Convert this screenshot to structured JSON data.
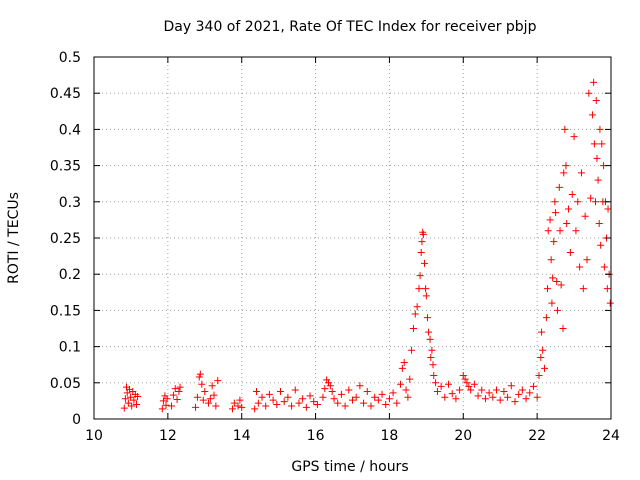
{
  "chart_data": {
    "type": "scatter",
    "title": "Day 340 of 2021, Rate Of TEC Index for receiver pbjp",
    "xlabel": "GPS time / hours",
    "ylabel": "ROTI / TECUs",
    "xlim": [
      10,
      24
    ],
    "ylim": [
      0,
      0.5
    ],
    "x_ticks": [
      "10",
      "12",
      "14",
      "16",
      "18",
      "20",
      "22",
      "24"
    ],
    "y_ticks": [
      "0",
      "0.05",
      "0.1",
      "0.15",
      "0.2",
      "0.25",
      "0.3",
      "0.35",
      "0.4",
      "0.45",
      "0.5"
    ],
    "grid": true,
    "marker": "+",
    "color": "#ff0000",
    "series": [
      {
        "points": [
          [
            10.82,
            0.015
          ],
          [
            10.85,
            0.028
          ],
          [
            10.88,
            0.044
          ],
          [
            10.9,
            0.036
          ],
          [
            10.93,
            0.022
          ],
          [
            10.96,
            0.041
          ],
          [
            10.99,
            0.03
          ],
          [
            11.02,
            0.018
          ],
          [
            11.05,
            0.038
          ],
          [
            11.08,
            0.026
          ],
          [
            11.12,
            0.034
          ],
          [
            11.15,
            0.02
          ],
          [
            11.18,
            0.031
          ],
          [
            11.85,
            0.014
          ],
          [
            11.88,
            0.025
          ],
          [
            11.92,
            0.032
          ],
          [
            11.95,
            0.019
          ],
          [
            11.98,
            0.028
          ],
          [
            12.1,
            0.018
          ],
          [
            12.15,
            0.033
          ],
          [
            12.2,
            0.042
          ],
          [
            12.25,
            0.027
          ],
          [
            12.3,
            0.038
          ],
          [
            12.33,
            0.044
          ],
          [
            12.75,
            0.016
          ],
          [
            12.8,
            0.03
          ],
          [
            12.85,
            0.058
          ],
          [
            12.88,
            0.062
          ],
          [
            12.92,
            0.048
          ],
          [
            12.96,
            0.026
          ],
          [
            13.0,
            0.038
          ],
          [
            13.1,
            0.022
          ],
          [
            13.15,
            0.028
          ],
          [
            13.2,
            0.046
          ],
          [
            13.25,
            0.033
          ],
          [
            13.3,
            0.018
          ],
          [
            13.35,
            0.053
          ],
          [
            13.75,
            0.014
          ],
          [
            13.8,
            0.022
          ],
          [
            13.9,
            0.018
          ],
          [
            13.95,
            0.026
          ],
          [
            14.0,
            0.016
          ],
          [
            14.35,
            0.014
          ],
          [
            14.4,
            0.038
          ],
          [
            14.45,
            0.022
          ],
          [
            14.55,
            0.03
          ],
          [
            14.65,
            0.018
          ],
          [
            14.75,
            0.034
          ],
          [
            14.85,
            0.026
          ],
          [
            14.95,
            0.02
          ],
          [
            15.05,
            0.038
          ],
          [
            15.15,
            0.024
          ],
          [
            15.25,
            0.03
          ],
          [
            15.35,
            0.018
          ],
          [
            15.45,
            0.04
          ],
          [
            15.55,
            0.022
          ],
          [
            15.65,
            0.028
          ],
          [
            15.75,
            0.016
          ],
          [
            15.85,
            0.032
          ],
          [
            15.95,
            0.024
          ],
          [
            16.05,
            0.02
          ],
          [
            16.2,
            0.03
          ],
          [
            16.25,
            0.042
          ],
          [
            16.3,
            0.054
          ],
          [
            16.35,
            0.05
          ],
          [
            16.4,
            0.046
          ],
          [
            16.45,
            0.038
          ],
          [
            16.5,
            0.028
          ],
          [
            16.6,
            0.022
          ],
          [
            16.7,
            0.034
          ],
          [
            16.8,
            0.018
          ],
          [
            16.9,
            0.04
          ],
          [
            17.0,
            0.026
          ],
          [
            17.1,
            0.03
          ],
          [
            17.2,
            0.046
          ],
          [
            17.3,
            0.022
          ],
          [
            17.4,
            0.038
          ],
          [
            17.5,
            0.018
          ],
          [
            17.6,
            0.03
          ],
          [
            17.7,
            0.026
          ],
          [
            17.8,
            0.034
          ],
          [
            17.9,
            0.02
          ],
          [
            18.0,
            0.028
          ],
          [
            18.1,
            0.036
          ],
          [
            18.2,
            0.022
          ],
          [
            18.3,
            0.048
          ],
          [
            18.35,
            0.07
          ],
          [
            18.4,
            0.078
          ],
          [
            18.45,
            0.04
          ],
          [
            18.5,
            0.03
          ],
          [
            18.55,
            0.055
          ],
          [
            18.6,
            0.095
          ],
          [
            18.65,
            0.125
          ],
          [
            18.7,
            0.145
          ],
          [
            18.75,
            0.155
          ],
          [
            18.8,
            0.18
          ],
          [
            18.83,
            0.198
          ],
          [
            18.86,
            0.23
          ],
          [
            18.88,
            0.245
          ],
          [
            18.9,
            0.258
          ],
          [
            18.92,
            0.255
          ],
          [
            18.95,
            0.215
          ],
          [
            18.98,
            0.18
          ],
          [
            19.0,
            0.17
          ],
          [
            19.03,
            0.14
          ],
          [
            19.06,
            0.12
          ],
          [
            19.1,
            0.11
          ],
          [
            19.12,
            0.085
          ],
          [
            19.15,
            0.095
          ],
          [
            19.18,
            0.075
          ],
          [
            19.2,
            0.06
          ],
          [
            19.25,
            0.05
          ],
          [
            19.3,
            0.038
          ],
          [
            19.4,
            0.045
          ],
          [
            19.5,
            0.03
          ],
          [
            19.6,
            0.048
          ],
          [
            19.7,
            0.035
          ],
          [
            19.8,
            0.028
          ],
          [
            19.9,
            0.04
          ],
          [
            20.0,
            0.06
          ],
          [
            20.05,
            0.055
          ],
          [
            20.1,
            0.05
          ],
          [
            20.15,
            0.045
          ],
          [
            20.2,
            0.04
          ],
          [
            20.3,
            0.048
          ],
          [
            20.4,
            0.032
          ],
          [
            20.5,
            0.04
          ],
          [
            20.6,
            0.028
          ],
          [
            20.7,
            0.036
          ],
          [
            20.8,
            0.03
          ],
          [
            20.9,
            0.04
          ],
          [
            21.0,
            0.026
          ],
          [
            21.1,
            0.038
          ],
          [
            21.2,
            0.03
          ],
          [
            21.3,
            0.046
          ],
          [
            21.4,
            0.024
          ],
          [
            21.5,
            0.034
          ],
          [
            21.6,
            0.04
          ],
          [
            21.7,
            0.028
          ],
          [
            21.8,
            0.036
          ],
          [
            21.9,
            0.045
          ],
          [
            22.0,
            0.03
          ],
          [
            22.05,
            0.06
          ],
          [
            22.1,
            0.085
          ],
          [
            22.12,
            0.12
          ],
          [
            22.15,
            0.095
          ],
          [
            22.2,
            0.07
          ],
          [
            22.25,
            0.14
          ],
          [
            22.28,
            0.18
          ],
          [
            22.3,
            0.26
          ],
          [
            22.35,
            0.275
          ],
          [
            22.38,
            0.22
          ],
          [
            22.4,
            0.16
          ],
          [
            22.42,
            0.195
          ],
          [
            22.45,
            0.245
          ],
          [
            22.48,
            0.3
          ],
          [
            22.5,
            0.285
          ],
          [
            22.53,
            0.19
          ],
          [
            22.55,
            0.15
          ],
          [
            22.6,
            0.32
          ],
          [
            22.62,
            0.26
          ],
          [
            22.65,
            0.185
          ],
          [
            22.7,
            0.125
          ],
          [
            22.72,
            0.34
          ],
          [
            22.75,
            0.4
          ],
          [
            22.78,
            0.35
          ],
          [
            22.8,
            0.27
          ],
          [
            22.85,
            0.29
          ],
          [
            22.9,
            0.23
          ],
          [
            22.95,
            0.31
          ],
          [
            23.0,
            0.39
          ],
          [
            23.05,
            0.26
          ],
          [
            23.1,
            0.3
          ],
          [
            23.15,
            0.21
          ],
          [
            23.2,
            0.34
          ],
          [
            23.25,
            0.18
          ],
          [
            23.3,
            0.28
          ],
          [
            23.35,
            0.22
          ],
          [
            23.4,
            0.45
          ],
          [
            23.45,
            0.305
          ],
          [
            23.5,
            0.42
          ],
          [
            23.53,
            0.465
          ],
          [
            23.55,
            0.38
          ],
          [
            23.58,
            0.3
          ],
          [
            23.6,
            0.44
          ],
          [
            23.62,
            0.36
          ],
          [
            23.65,
            0.33
          ],
          [
            23.68,
            0.27
          ],
          [
            23.7,
            0.4
          ],
          [
            23.72,
            0.24
          ],
          [
            23.75,
            0.38
          ],
          [
            23.78,
            0.3
          ],
          [
            23.8,
            0.35
          ],
          [
            23.82,
            0.21
          ],
          [
            23.85,
            0.3
          ],
          [
            23.88,
            0.25
          ],
          [
            23.9,
            0.18
          ],
          [
            23.92,
            0.29
          ],
          [
            23.95,
            0.2
          ],
          [
            23.98,
            0.16
          ]
        ]
      }
    ]
  }
}
